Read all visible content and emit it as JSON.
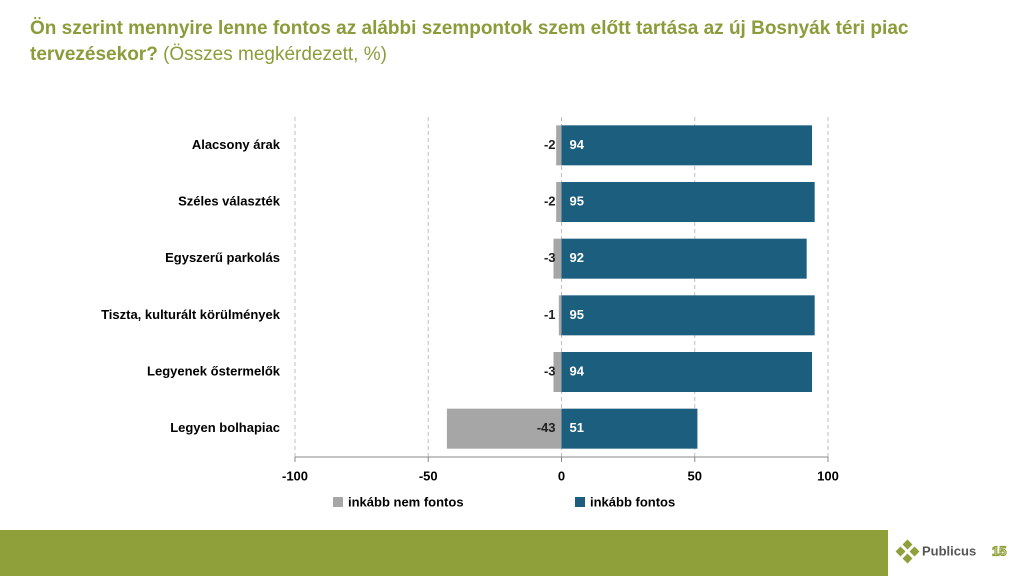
{
  "chart_data": {
    "type": "diverging-bar",
    "title": "Ön szerint mennyire lenne fontos az alábbi szempontok szem előtt tartása az új Bosnyák téri piac tervezésekor?",
    "subtitle": "(Összes megkérdezett, %)",
    "categories": [
      "Alacsony árak",
      "Széles választék",
      "Egyszerű parkolás",
      "Tiszta, kulturált körülmények",
      "Legyenek őstermelők",
      "Legyen bolhapiac"
    ],
    "series": [
      {
        "name": "inkább nem fontos",
        "color": "#a6a6a6",
        "values": [
          -2,
          -2,
          -3,
          -1,
          -3,
          -43
        ]
      },
      {
        "name": "inkább fontos",
        "color": "#1b5e7e",
        "values": [
          94,
          95,
          92,
          95,
          94,
          51
        ]
      }
    ],
    "xlim": [
      -100,
      100
    ],
    "xticks": [
      -100,
      -50,
      0,
      50,
      100
    ],
    "grid": true
  },
  "footer": {
    "logo": "Publicus",
    "logo_number": "15"
  }
}
